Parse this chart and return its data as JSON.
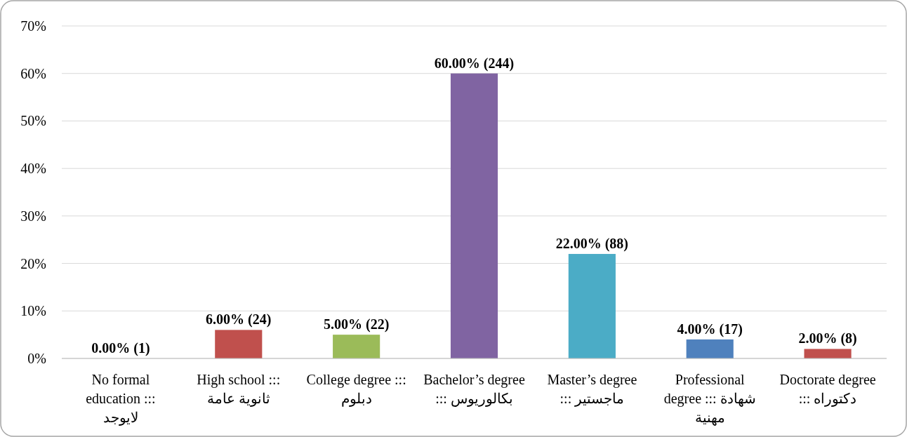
{
  "chart_data": {
    "type": "bar",
    "categories": [
      "No formal education ::: لايوجد",
      "High school ::: ثانوية عامة",
      "College degree ::: دبلوم",
      "Bachelor’s degree ::: بكالوريوس",
      "Master’s degree ::: ماجستير",
      "Professional degree ::: شهادة مهنية",
      "Doctorate degree ::: دكتوراه"
    ],
    "values": [
      0,
      6,
      5,
      60,
      22,
      4,
      2
    ],
    "colors": [
      "#4f81bd",
      "#c0504d",
      "#9bbb59",
      "#8064a2",
      "#4bacc6",
      "#4f81bd",
      "#c0504d"
    ],
    "value_labels": [
      "0.00% (1)",
      "6.00% (24)",
      "5.00% (22)",
      "60.00% (244)",
      "22.00% (88)",
      "4.00% (17)",
      "2.00% (8)"
    ],
    "ylim": [
      0,
      70
    ],
    "yticks": [
      {
        "value": 0,
        "label": "0%"
      },
      {
        "value": 10,
        "label": "10%"
      },
      {
        "value": 20,
        "label": "20%"
      },
      {
        "value": 30,
        "label": "30%"
      },
      {
        "value": 40,
        "label": "40%"
      },
      {
        "value": 50,
        "label": "50%"
      },
      {
        "value": 60,
        "label": "60%"
      },
      {
        "value": 70,
        "label": "70%"
      }
    ],
    "grid": "y"
  }
}
